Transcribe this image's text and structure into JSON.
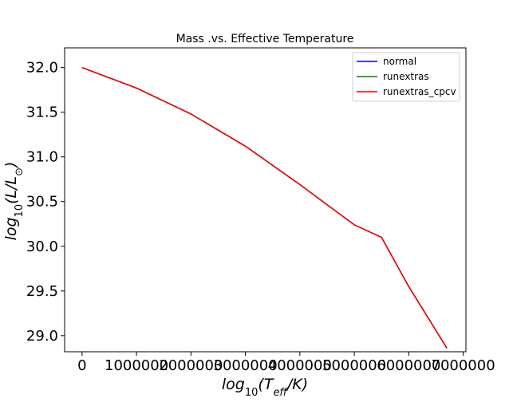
{
  "chart_data": {
    "type": "line",
    "title": "Mass .vs. Effective Temperature",
    "xlabel": {
      "base": "log",
      "sub": "10",
      "pre": "(T",
      "var_sub": "eff",
      "post": "/K)"
    },
    "ylabel": {
      "base": "log",
      "sub": "10",
      "pre": "(L/L",
      "var_sub": "⊙",
      "post": ")"
    },
    "xlim": [
      -320000,
      7050000
    ],
    "ylim": [
      28.82,
      32.22
    ],
    "x_ticks": [
      0,
      1000000,
      2000000,
      3000000,
      4000000,
      5000000,
      6000000,
      7000000
    ],
    "x_tick_labels": [
      "0",
      "1000000",
      "2000000",
      "3000000",
      "4000000",
      "5000000",
      "6000000",
      "7000000"
    ],
    "y_ticks": [
      29.0,
      29.5,
      30.0,
      30.5,
      31.0,
      31.5,
      32.0
    ],
    "y_tick_labels": [
      "29.0",
      "29.5",
      "30.0",
      "30.5",
      "31.0",
      "31.5",
      "32.0"
    ],
    "legend_position": "top-right",
    "grid": false,
    "series": [
      {
        "name": "normal",
        "color": "#0000ff",
        "x": [
          0,
          1000000,
          2000000,
          3000000,
          4000000,
          5000000,
          5500000,
          6000000,
          6700000
        ],
        "y": [
          32.0,
          31.77,
          31.48,
          31.12,
          30.69,
          30.24,
          30.1,
          29.55,
          28.86
        ]
      },
      {
        "name": "runextras",
        "color": "#008000",
        "x": [
          0,
          1000000,
          2000000,
          3000000,
          4000000,
          5000000,
          5500000,
          6000000,
          6700000
        ],
        "y": [
          32.0,
          31.77,
          31.48,
          31.12,
          30.69,
          30.24,
          30.1,
          29.55,
          28.86
        ]
      },
      {
        "name": "runextras_cpcv",
        "color": "#ff0000",
        "x": [
          0,
          1000000,
          2000000,
          3000000,
          4000000,
          5000000,
          5500000,
          6000000,
          6700000
        ],
        "y": [
          32.0,
          31.77,
          31.48,
          31.12,
          30.69,
          30.24,
          30.1,
          29.55,
          28.86
        ]
      }
    ]
  }
}
